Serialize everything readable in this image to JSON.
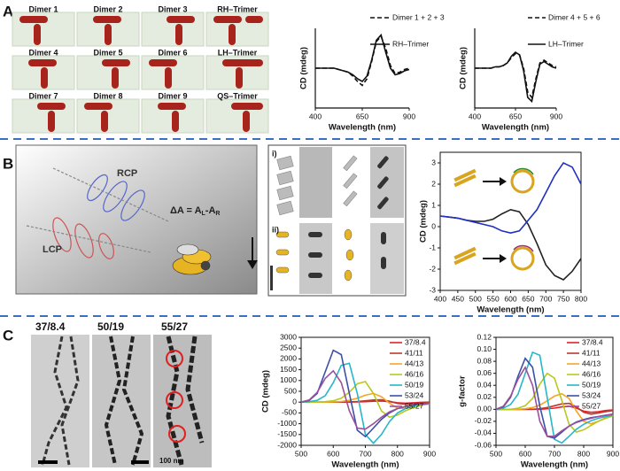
{
  "panel_labels": [
    "A",
    "B",
    "C"
  ],
  "dimer_labels": [
    "Dimer 1",
    "Dimer 2",
    "Dimer 3",
    "RH–Trimer",
    "Dimer 4",
    "Dimer 5",
    "Dimer 6",
    "LH–Trimer",
    "Dimer 7",
    "Dimer 8",
    "Dimer 9",
    "QS–Trimer"
  ],
  "schematic": {
    "rcp": "RCP",
    "lcp": "LCP",
    "equation": [
      "ΔA = A",
      "L",
      "-A",
      "R"
    ]
  },
  "tem_b": {
    "row_1": "i)",
    "row_2": "ii)"
  },
  "tem_c": {
    "labels": [
      "37/8.4",
      "50/19",
      "55/27"
    ],
    "scale": "100 nm"
  },
  "chart_data": [
    {
      "type": "line",
      "x_label": "Wavelength (nm)",
      "y_label": "CD (mdeg)",
      "x": [
        400,
        425,
        450,
        475,
        500,
        525,
        550,
        575,
        600,
        625,
        650,
        675,
        700,
        725,
        750,
        775,
        800,
        825,
        850,
        875,
        900
      ],
      "xlim": [
        400,
        900
      ],
      "ylim": [
        -30,
        30
      ],
      "xticks": [
        400,
        650,
        900
      ],
      "series": [
        {
          "name": "Dimer 1 + 2 + 3",
          "color": "#111111",
          "style": "dashed",
          "values": [
            0,
            0,
            0,
            0,
            0,
            -1,
            -2,
            -3,
            -6,
            -10,
            -13,
            -8,
            5,
            20,
            24,
            15,
            2,
            -4,
            -3,
            -1,
            0
          ]
        },
        {
          "name": "RH–Trimer",
          "color": "#111111",
          "style": "solid",
          "values": [
            0,
            0,
            0,
            0,
            0,
            -1,
            -2,
            -3,
            -5,
            -8,
            -10,
            -6,
            6,
            21,
            25,
            12,
            0,
            -5,
            -4,
            -2,
            -1
          ]
        }
      ]
    },
    {
      "type": "line",
      "x_label": "Wavelength (nm)",
      "y_label": "CD (mdeg)",
      "x": [
        400,
        425,
        450,
        475,
        500,
        525,
        550,
        575,
        600,
        625,
        650,
        675,
        700,
        725,
        750,
        775,
        800,
        825,
        850,
        875,
        900
      ],
      "xlim": [
        400,
        900
      ],
      "ylim": [
        -30,
        30
      ],
      "xticks": [
        400,
        650,
        900
      ],
      "series": [
        {
          "name": "Dimer 4 + 5 + 6",
          "color": "#111111",
          "style": "dashed",
          "values": [
            0,
            0,
            0,
            0,
            0,
            1,
            1,
            2,
            4,
            8,
            11,
            10,
            0,
            -18,
            -22,
            -8,
            4,
            6,
            4,
            2,
            1
          ]
        },
        {
          "name": "LH–Trimer",
          "color": "#111111",
          "style": "solid",
          "values": [
            0,
            0,
            0,
            0,
            0,
            1,
            1,
            2,
            4,
            9,
            12,
            10,
            -2,
            -22,
            -25,
            -10,
            3,
            5,
            3,
            1,
            0
          ]
        }
      ]
    },
    {
      "type": "line",
      "x_label": "Wavelength (nm)",
      "y_label": "CD (mdeg)",
      "x": [
        400,
        425,
        450,
        475,
        500,
        525,
        550,
        575,
        600,
        625,
        650,
        675,
        700,
        725,
        750,
        775,
        800
      ],
      "xlim": [
        400,
        800
      ],
      "ylim": [
        -3,
        3.5
      ],
      "xticks": [
        400,
        450,
        500,
        550,
        600,
        650,
        700,
        750,
        800
      ],
      "yticks": [
        -3,
        -2,
        -1,
        0,
        1,
        2,
        3
      ],
      "series": [
        {
          "color": "#222222",
          "style": "solid",
          "values": [
            0.5,
            0.45,
            0.4,
            0.3,
            0.25,
            0.25,
            0.35,
            0.6,
            0.8,
            0.7,
            0.1,
            -0.8,
            -1.8,
            -2.3,
            -2.5,
            -2.1,
            -1.5
          ]
        },
        {
          "color": "#2030c0",
          "style": "solid",
          "values": [
            0.5,
            0.45,
            0.4,
            0.3,
            0.2,
            0.1,
            0.0,
            -0.2,
            -0.3,
            -0.2,
            0.3,
            0.8,
            1.6,
            2.4,
            3.0,
            2.8,
            2.0
          ]
        }
      ]
    },
    {
      "type": "line",
      "x_label": "Wavelength (nm)",
      "y_label": "CD (mdeg)",
      "x": [
        500,
        525,
        550,
        575,
        600,
        625,
        650,
        675,
        700,
        725,
        750,
        775,
        800,
        825,
        850,
        875,
        900
      ],
      "xlim": [
        500,
        900
      ],
      "ylim": [
        -2000,
        3000
      ],
      "xticks": [
        500,
        600,
        700,
        800,
        900
      ],
      "yticks": [
        -2000,
        -1500,
        -1000,
        -500,
        0,
        500,
        1000,
        1500,
        2000,
        2500,
        3000
      ],
      "series": [
        {
          "name": "37/8.4",
          "color": "#e8202a",
          "style": "solid",
          "values": [
            0,
            0,
            0,
            0,
            0,
            0,
            0,
            10,
            20,
            40,
            50,
            20,
            -30,
            -50,
            -30,
            -10,
            0
          ]
        },
        {
          "name": "41/11",
          "color": "#b83a2e",
          "style": "solid",
          "values": [
            0,
            0,
            0,
            0,
            0,
            0,
            10,
            30,
            60,
            100,
            110,
            40,
            -60,
            -100,
            -70,
            -30,
            -10
          ]
        },
        {
          "name": "44/13",
          "color": "#f5a623",
          "style": "solid",
          "values": [
            0,
            0,
            0,
            0,
            10,
            30,
            80,
            180,
            320,
            400,
            250,
            -50,
            -280,
            -300,
            -200,
            -100,
            -40
          ]
        },
        {
          "name": "46/16",
          "color": "#b8c81e",
          "style": "solid",
          "values": [
            0,
            0,
            0,
            20,
            60,
            180,
            450,
            850,
            950,
            400,
            -400,
            -700,
            -600,
            -400,
            -250,
            -150,
            -80
          ]
        },
        {
          "name": "50/19",
          "color": "#27b7c9",
          "style": "solid",
          "values": [
            0,
            20,
            80,
            300,
            900,
            1700,
            1800,
            400,
            -1500,
            -1900,
            -1500,
            -900,
            -500,
            -300,
            -180,
            -100,
            -60
          ]
        },
        {
          "name": "53/24",
          "color": "#3c4fa8",
          "style": "solid",
          "values": [
            0,
            80,
            400,
            1400,
            2400,
            2200,
            400,
            -1300,
            -1600,
            -1200,
            -800,
            -500,
            -300,
            -200,
            -120,
            -80,
            -50
          ]
        },
        {
          "name": "55/27",
          "color": "#9b4f9e",
          "style": "solid",
          "values": [
            0,
            100,
            450,
            1100,
            1450,
            900,
            -400,
            -1200,
            -1250,
            -1000,
            -700,
            -450,
            -300,
            -200,
            -130,
            -90,
            -60
          ]
        }
      ]
    },
    {
      "type": "line",
      "x_label": "Wavelength (nm)",
      "y_label": "g-factor",
      "x": [
        500,
        525,
        550,
        575,
        600,
        625,
        650,
        675,
        700,
        725,
        750,
        775,
        800,
        825,
        850,
        875,
        900
      ],
      "xlim": [
        500,
        900
      ],
      "ylim": [
        -0.06,
        0.12
      ],
      "xticks": [
        500,
        600,
        700,
        800,
        900
      ],
      "yticks": [
        -0.06,
        -0.04,
        -0.02,
        {
          "value": 0,
          "label": "0.00"
        },
        0.02,
        0.04,
        0.06,
        0.08,
        {
          "value": 0.1,
          "label": "0.10"
        },
        0.12
      ],
      "series": [
        {
          "name": "37/8.4",
          "color": "#e8202a",
          "style": "solid",
          "values": [
            0,
            0,
            0,
            0,
            0,
            0,
            0,
            0.001,
            0.002,
            0.004,
            0.005,
            0.002,
            -0.003,
            -0.005,
            -0.004,
            -0.002,
            -0.001
          ]
        },
        {
          "name": "41/11",
          "color": "#b83a2e",
          "style": "solid",
          "values": [
            0,
            0,
            0,
            0,
            0,
            0,
            0.001,
            0.003,
            0.006,
            0.009,
            0.01,
            0.004,
            -0.005,
            -0.008,
            -0.006,
            -0.004,
            -0.002
          ]
        },
        {
          "name": "44/13",
          "color": "#f5a623",
          "style": "solid",
          "values": [
            0,
            0,
            0,
            0,
            0.001,
            0.003,
            0.007,
            0.014,
            0.022,
            0.026,
            0.018,
            -0.003,
            -0.02,
            -0.024,
            -0.02,
            -0.014,
            -0.009
          ]
        },
        {
          "name": "46/16",
          "color": "#b8c81e",
          "style": "solid",
          "values": [
            0,
            0,
            0,
            0.002,
            0.006,
            0.018,
            0.042,
            0.06,
            0.052,
            0.015,
            -0.025,
            -0.038,
            -0.034,
            -0.027,
            -0.02,
            -0.015,
            -0.011
          ]
        },
        {
          "name": "50/19",
          "color": "#27b7c9",
          "style": "solid",
          "values": [
            0,
            0.002,
            0.008,
            0.025,
            0.06,
            0.095,
            0.09,
            0.02,
            -0.05,
            -0.056,
            -0.045,
            -0.033,
            -0.025,
            -0.019,
            -0.015,
            -0.012,
            -0.01
          ]
        },
        {
          "name": "53/24",
          "color": "#3c4fa8",
          "style": "solid",
          "values": [
            0,
            0.004,
            0.02,
            0.055,
            0.085,
            0.07,
            0.005,
            -0.045,
            -0.048,
            -0.038,
            -0.028,
            -0.021,
            -0.017,
            -0.014,
            -0.012,
            -0.01,
            -0.008
          ]
        },
        {
          "name": "55/27",
          "color": "#9b4f9e",
          "style": "solid",
          "values": [
            0,
            0.005,
            0.022,
            0.05,
            0.07,
            0.04,
            -0.02,
            -0.045,
            -0.045,
            -0.036,
            -0.028,
            -0.022,
            -0.018,
            -0.015,
            -0.012,
            -0.01,
            -0.008
          ]
        }
      ]
    }
  ]
}
